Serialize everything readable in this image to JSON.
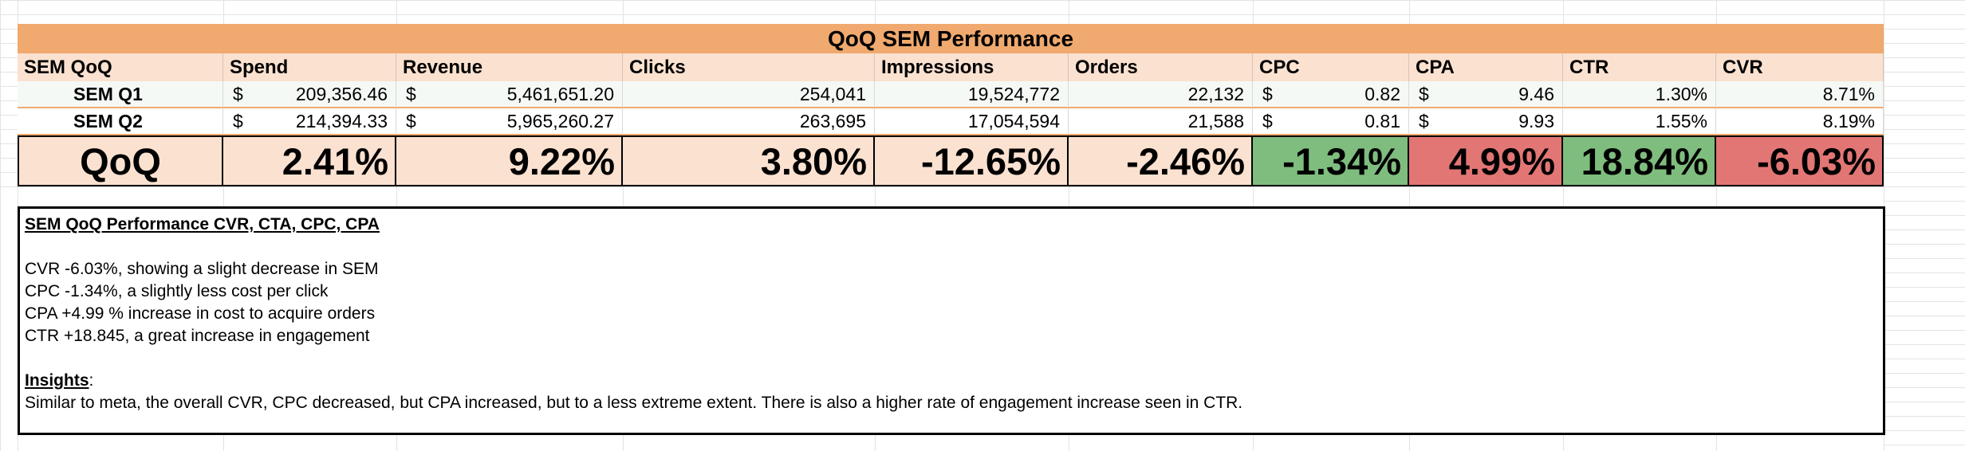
{
  "sheet": {
    "title": "QoQ SEM Performance",
    "headers": [
      "SEM QoQ",
      "Spend",
      "Revenue",
      "Clicks",
      "Impressions",
      "Orders",
      "CPC",
      "CPA",
      "CTR",
      "CVR"
    ],
    "rows": [
      {
        "label": "SEM Q1",
        "spend": "209,356.46",
        "revenue": "5,461,651.20",
        "clicks": "254,041",
        "impressions": "19,524,772",
        "orders": "22,132",
        "cpc": "0.82",
        "cpa": "9.46",
        "ctr": "1.30%",
        "cvr": "8.71%"
      },
      {
        "label": "SEM Q2",
        "spend": "214,394.33",
        "revenue": "5,965,260.27",
        "clicks": "263,695",
        "impressions": "17,054,594",
        "orders": "21,588",
        "cpc": "0.81",
        "cpa": "9.93",
        "ctr": "1.55%",
        "cvr": "8.19%"
      }
    ],
    "currency_symbol": "$",
    "qoq": {
      "label": "QoQ",
      "spend": "2.41%",
      "revenue": "9.22%",
      "clicks": "3.80%",
      "impressions": "-12.65%",
      "orders": "-2.46%",
      "cpc": "-1.34%",
      "cpa": "4.99%",
      "ctr": "18.84%",
      "cvr": "-6.03%"
    },
    "colors": {
      "title_fill": "#f0a96e",
      "header_fill": "#fbe1d0",
      "good": "#7fbd7e",
      "bad": "#e27674"
    }
  },
  "notes": {
    "heading": "SEM QoQ Performance CVR, CTA, CPC, CPA",
    "lines": [
      "CVR -6.03%, showing a slight decrease in SEM",
      "CPC -1.34%, a slightly less cost per click",
      "CPA +4.99 % increase in cost to acquire orders",
      "CTR +18.845, a great increase in engagement"
    ],
    "insights_heading": "Insights",
    "insights_suffix": ":",
    "insights_text": "Similar to meta, the overall CVR, CPC decreased, but CPA increased, but to a less extreme extent. There is also a higher rate of engagement increase seen in CTR."
  }
}
